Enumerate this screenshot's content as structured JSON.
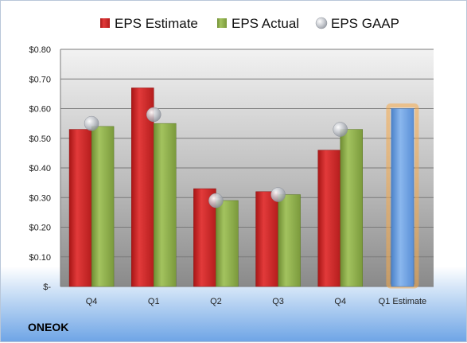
{
  "company": "ONEOK",
  "chart_data": {
    "type": "bar",
    "categories": [
      "Q4",
      "Q1",
      "Q2",
      "Q3",
      "Q4",
      "Q1 Estimate"
    ],
    "series": [
      {
        "name": "EPS Estimate",
        "values": [
          0.53,
          0.67,
          0.33,
          0.32,
          0.46,
          null
        ],
        "color": "#d42a2a"
      },
      {
        "name": "EPS Actual",
        "values": [
          0.54,
          0.55,
          0.29,
          0.31,
          0.53,
          null
        ],
        "color": "#8db04c"
      },
      {
        "name": "EPS GAAP",
        "values": [
          0.55,
          0.58,
          0.29,
          0.31,
          0.53,
          null
        ],
        "color": "#b4b8bf",
        "marker": "circle"
      }
    ],
    "forecast": {
      "category": "Q1 Estimate",
      "value": 0.6,
      "color": "#6a9fe0",
      "glow": "#f6a94a"
    },
    "yticks": [
      "$-",
      "$0.10",
      "$0.20",
      "$0.30",
      "$0.40",
      "$0.50",
      "$0.60",
      "$0.70",
      "$0.80"
    ],
    "ylim": [
      0,
      0.8
    ],
    "legend_position": "top",
    "grid": true
  }
}
